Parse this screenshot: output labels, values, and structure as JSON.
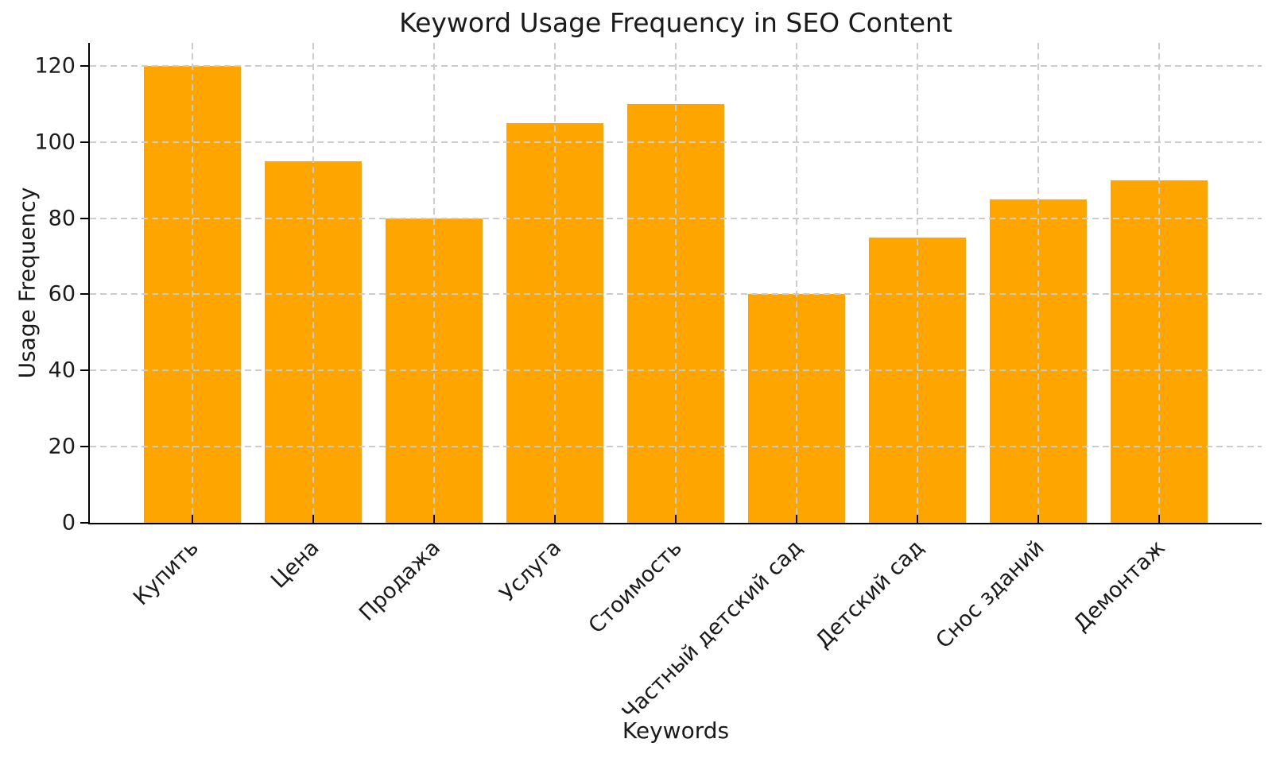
{
  "chart_data": {
    "type": "bar",
    "title": "Keyword Usage Frequency in SEO Content",
    "xlabel": "Keywords",
    "ylabel": "Usage Frequency",
    "categories": [
      "Купить",
      "Цена",
      "Продажа",
      "Услуга",
      "Стоимость",
      "Частный детский сад",
      "Детский сад",
      "Снос зданий",
      "Демонтаж"
    ],
    "values": [
      120,
      95,
      80,
      105,
      110,
      60,
      75,
      85,
      90
    ],
    "yticks": [
      0,
      20,
      40,
      60,
      80,
      100,
      120
    ],
    "ylim": [
      0,
      126
    ],
    "bar_width_fraction": 0.8,
    "x_tick_rotation_deg": 45,
    "grid": "dashed",
    "legend": "none",
    "colors": {
      "bar": "#FFA500",
      "axis": "#000000",
      "grid": "#CCCCCC",
      "text": "#1A1A1A",
      "background": "#FFFFFF"
    }
  }
}
